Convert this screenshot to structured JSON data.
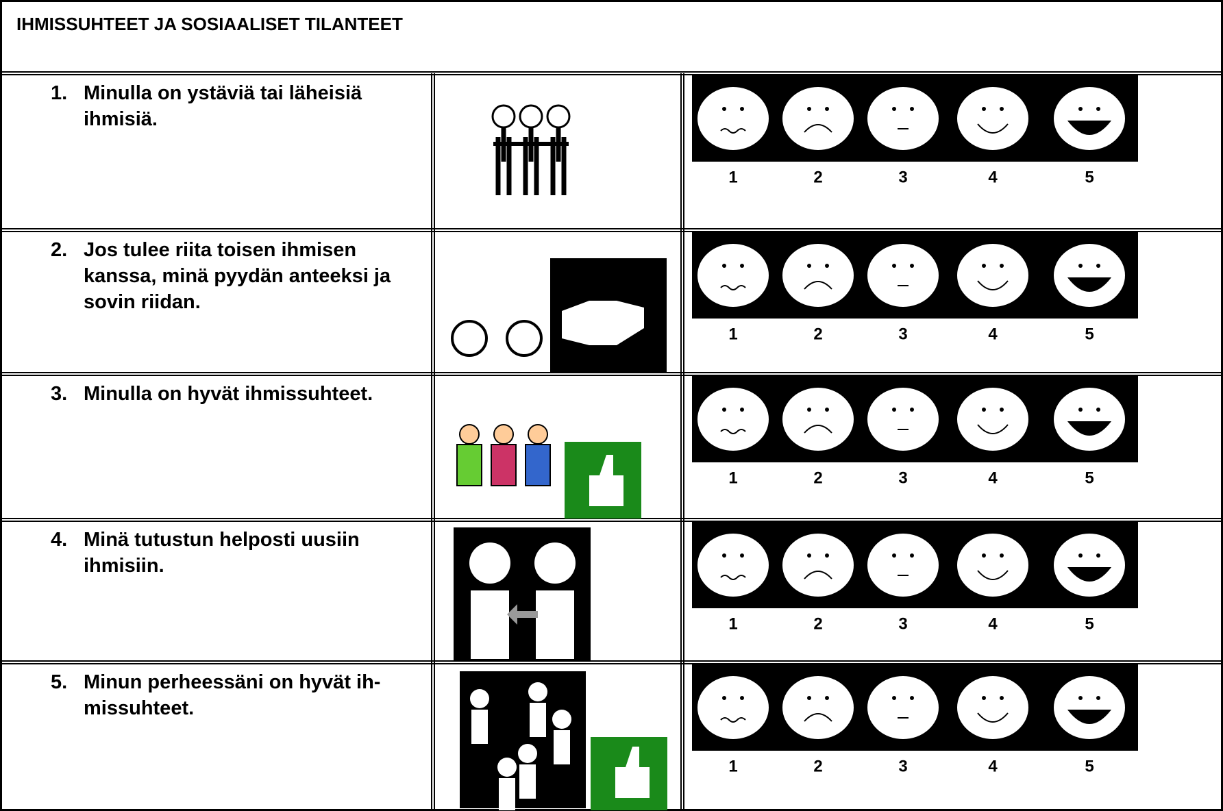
{
  "header": {
    "title": "IHMISSUHTEET JA SOSIAALISET TILANTEET"
  },
  "rating_labels": [
    "1",
    "2",
    "3",
    "4",
    "5"
  ],
  "rows": [
    {
      "number": "1.",
      "text": "Minulla on ystäviä tai läheisiä ihmisiä."
    },
    {
      "number": "2.",
      "text": "Jos tulee riita toisen ihmisen kanssa, minä pyydän anteeksi ja sovin riidan."
    },
    {
      "number": "3.",
      "text": "Minulla on hyvät ihmissuhteet."
    },
    {
      "number": "4.",
      "text": "Minä tutustun helposti uusiin ihmisiin."
    },
    {
      "number": "5.",
      "text": "Minun perheessäni on hyvät ih-missuhteet."
    }
  ]
}
